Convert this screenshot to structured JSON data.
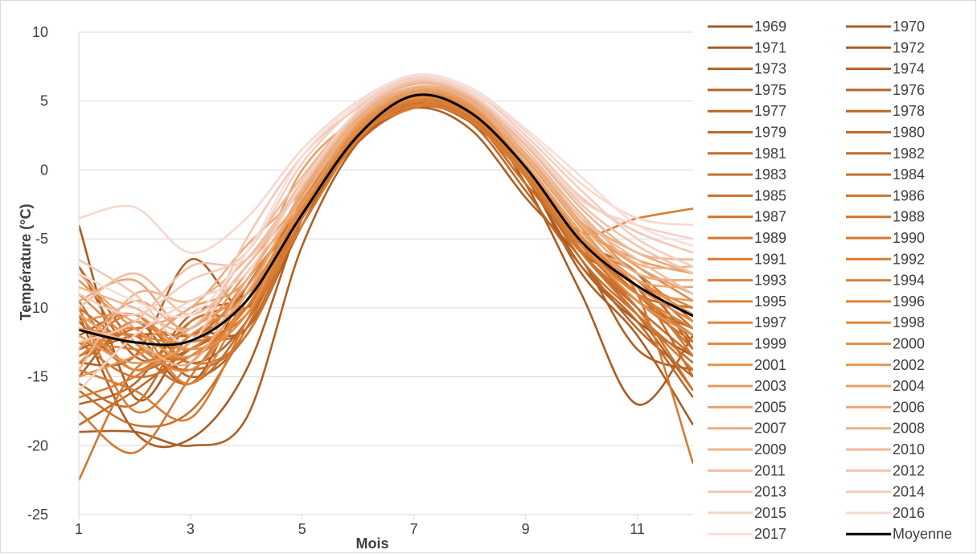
{
  "chart_data": {
    "type": "line",
    "title": "",
    "xlabel": "Mois",
    "ylabel": "Température (°C)",
    "xlim": [
      1,
      12
    ],
    "ylim": [
      -25,
      10
    ],
    "x_ticks": [
      "1",
      "3",
      "5",
      "7",
      "9",
      "11"
    ],
    "y_ticks": [
      "10",
      "5",
      "0",
      "-5",
      "-10",
      "-15",
      "-20",
      "-25"
    ],
    "grid": "horizontal",
    "legend_position": "right",
    "x": [
      1,
      2,
      3,
      4,
      5,
      6,
      7,
      8,
      9,
      10,
      11,
      12
    ],
    "average": {
      "name": "Moyenne",
      "color": "#000000",
      "values": [
        -11.6,
        -12.5,
        -12.4,
        -9.5,
        -3.2,
        2.5,
        5.4,
        4.2,
        0.2,
        -5.2,
        -8.4,
        -10.6
      ]
    },
    "series": [
      {
        "name": "1969",
        "color": "#A95A22",
        "values": [
          -4.0,
          -16.5,
          -12.0,
          -11.5,
          -4.0,
          3.0,
          5.5,
          4.0,
          -0.5,
          -7.0,
          -11.0,
          -13.5
        ]
      },
      {
        "name": "1970",
        "color": "#AB5B22",
        "values": [
          -10.5,
          -19.0,
          -19.5,
          -14.5,
          -3.5,
          3.2,
          5.0,
          4.5,
          -1.0,
          -9.0,
          -17.0,
          -12.0
        ]
      },
      {
        "name": "1971",
        "color": "#AD5C23",
        "values": [
          -13.0,
          -12.0,
          -15.5,
          -8.5,
          -3.0,
          2.5,
          5.2,
          3.5,
          -0.5,
          -7.5,
          -12.0,
          -18.5
        ]
      },
      {
        "name": "1972",
        "color": "#B05E23",
        "values": [
          -19.0,
          -19.0,
          -20.0,
          -18.0,
          -5.5,
          2.0,
          4.5,
          3.0,
          -2.0,
          -6.5,
          -13.0,
          -14.5
        ]
      },
      {
        "name": "1973",
        "color": "#B26024",
        "values": [
          -14.0,
          -13.5,
          -6.5,
          -10.0,
          -3.5,
          2.5,
          5.0,
          4.0,
          -1.0,
          -5.0,
          -9.0,
          -12.0
        ]
      },
      {
        "name": "1974",
        "color": "#B46124",
        "values": [
          -15.0,
          -11.0,
          -15.0,
          -12.0,
          -4.0,
          2.5,
          4.8,
          3.5,
          0.0,
          -6.0,
          -10.5,
          -16.0
        ]
      },
      {
        "name": "1975",
        "color": "#B66325",
        "values": [
          -12.0,
          -10.5,
          -14.0,
          -11.0,
          -3.0,
          2.8,
          5.1,
          4.0,
          0.5,
          -5.0,
          -7.5,
          -13.0
        ]
      },
      {
        "name": "1976",
        "color": "#B86426",
        "values": [
          -7.0,
          -13.5,
          -13.0,
          -10.0,
          -2.5,
          3.0,
          5.0,
          3.8,
          0.0,
          -5.5,
          -9.5,
          -11.5
        ]
      },
      {
        "name": "1977",
        "color": "#BA6526",
        "values": [
          -17.0,
          -15.5,
          -10.5,
          -9.0,
          -3.0,
          2.2,
          5.3,
          3.8,
          -0.5,
          -6.5,
          -11.5,
          -15.0
        ]
      },
      {
        "name": "1978",
        "color": "#BC6727",
        "values": [
          -13.5,
          -12.0,
          -12.0,
          -11.5,
          -3.5,
          2.0,
          4.5,
          4.0,
          0.0,
          -6.0,
          -8.0,
          -12.5
        ]
      },
      {
        "name": "1979",
        "color": "#BE6828",
        "values": [
          -18.5,
          -16.0,
          -13.0,
          -10.5,
          -4.0,
          2.5,
          4.6,
          3.5,
          -1.5,
          -7.0,
          -11.0,
          -16.5
        ]
      },
      {
        "name": "1980",
        "color": "#C06A28",
        "values": [
          -11.0,
          -14.5,
          -12.5,
          -8.5,
          -2.5,
          2.8,
          5.0,
          4.0,
          0.5,
          -5.0,
          -9.0,
          -10.0
        ]
      },
      {
        "name": "1981",
        "color": "#C26B29",
        "values": [
          -7.0,
          -12.5,
          -14.5,
          -12.0,
          -3.5,
          2.5,
          5.2,
          3.8,
          -0.5,
          -6.0,
          -10.0,
          -13.5
        ]
      },
      {
        "name": "1982",
        "color": "#C46D2A",
        "values": [
          -15.5,
          -17.0,
          -11.0,
          -10.0,
          -3.0,
          2.8,
          5.0,
          4.0,
          0.0,
          -5.5,
          -8.5,
          -15.0
        ]
      },
      {
        "name": "1983",
        "color": "#C66E2B",
        "values": [
          -10.0,
          -13.0,
          -15.5,
          -11.0,
          -2.5,
          3.0,
          5.3,
          4.2,
          -0.5,
          -6.0,
          -9.5,
          -12.0
        ]
      },
      {
        "name": "1984",
        "color": "#C8702C",
        "values": [
          -14.0,
          -11.5,
          -12.0,
          -9.5,
          -3.0,
          2.6,
          4.8,
          3.6,
          0.0,
          -6.5,
          -10.5,
          -14.0
        ]
      },
      {
        "name": "1985",
        "color": "#CA712C",
        "values": [
          -16.0,
          -18.5,
          -17.5,
          -11.5,
          -3.5,
          2.3,
          5.0,
          3.8,
          -1.0,
          -5.5,
          -8.0,
          -11.5
        ]
      },
      {
        "name": "1986",
        "color": "#CC722D",
        "values": [
          -12.5,
          -15.0,
          -13.5,
          -10.0,
          -3.2,
          2.5,
          5.1,
          4.0,
          0.2,
          -5.0,
          -9.0,
          -13.0
        ]
      },
      {
        "name": "1987",
        "color": "#CE742E",
        "values": [
          -9.5,
          -14.5,
          -11.0,
          -9.0,
          -2.8,
          2.8,
          5.2,
          4.0,
          -0.2,
          -6.0,
          -10.0,
          -16.0
        ]
      },
      {
        "name": "1988",
        "color": "#D0752F",
        "values": [
          -13.0,
          -10.5,
          -14.0,
          -12.0,
          -3.5,
          2.5,
          4.6,
          3.7,
          0.3,
          -5.5,
          -9.5,
          -12.5
        ]
      },
      {
        "name": "1989",
        "color": "#D27730",
        "values": [
          -22.5,
          -14.5,
          -13.5,
          -10.0,
          -3.0,
          2.7,
          5.0,
          4.0,
          -0.5,
          -6.0,
          -10.5,
          -14.5
        ]
      },
      {
        "name": "1990",
        "color": "#D47831",
        "values": [
          -17.5,
          -20.5,
          -15.0,
          -9.5,
          -3.2,
          2.5,
          4.9,
          3.8,
          0.0,
          -5.0,
          -8.5,
          -13.5
        ]
      },
      {
        "name": "1991",
        "color": "#D67A32",
        "values": [
          -14.5,
          -16.0,
          -18.0,
          -11.0,
          -3.5,
          2.6,
          5.1,
          4.1,
          -0.3,
          -5.8,
          -9.0,
          -21.3
        ]
      },
      {
        "name": "1992",
        "color": "#D87C34",
        "values": [
          -11.5,
          -12.0,
          -12.5,
          -10.5,
          -4.0,
          2.2,
          4.7,
          3.6,
          -0.5,
          -5.5,
          -9.0,
          -12.0
        ]
      },
      {
        "name": "1993",
        "color": "#DA7D35",
        "values": [
          -10.0,
          -17.5,
          -14.0,
          -10.0,
          -3.0,
          2.5,
          4.5,
          5.2,
          0.0,
          -4.5,
          -3.5,
          -2.8
        ]
      },
      {
        "name": "1994",
        "color": "#DB7F36",
        "values": [
          -16.5,
          -15.0,
          -12.0,
          -9.0,
          -3.2,
          2.8,
          5.0,
          4.0,
          0.5,
          -5.2,
          -7.5,
          -11.0
        ]
      },
      {
        "name": "1995",
        "color": "#DD8138",
        "values": [
          -12.5,
          -13.0,
          -13.5,
          -10.5,
          -3.0,
          2.6,
          5.2,
          4.2,
          0.2,
          -5.0,
          -8.5,
          -10.5
        ]
      },
      {
        "name": "1996",
        "color": "#DE833B",
        "values": [
          -13.5,
          -11.5,
          -15.5,
          -9.5,
          -2.5,
          3.0,
          5.4,
          4.3,
          0.0,
          -5.5,
          -9.0,
          -11.5
        ]
      },
      {
        "name": "1997",
        "color": "#E0863E",
        "values": [
          -10.5,
          -14.5,
          -12.0,
          -9.0,
          -2.8,
          2.8,
          5.5,
          4.5,
          0.5,
          -4.5,
          -8.0,
          -10.0
        ]
      },
      {
        "name": "1998",
        "color": "#E18942",
        "values": [
          -14.0,
          -11.0,
          -13.0,
          -8.0,
          -3.0,
          3.0,
          5.3,
          4.4,
          1.0,
          -4.0,
          -7.0,
          -9.5
        ]
      },
      {
        "name": "1999",
        "color": "#E28C46",
        "values": [
          -9.0,
          -12.5,
          -14.5,
          -9.5,
          -2.5,
          2.9,
          5.2,
          4.3,
          0.2,
          -5.0,
          -8.5,
          -11.0
        ]
      },
      {
        "name": "2000",
        "color": "#E3904B",
        "values": [
          -11.0,
          -10.5,
          -13.0,
          -10.5,
          -2.2,
          3.1,
          5.6,
          4.6,
          0.5,
          -4.8,
          -8.0,
          -10.5
        ]
      },
      {
        "name": "2001",
        "color": "#E49351",
        "values": [
          -15.0,
          -13.5,
          -11.5,
          -8.5,
          -2.0,
          3.2,
          5.7,
          4.5,
          0.3,
          -5.2,
          -9.5,
          -12.0
        ]
      },
      {
        "name": "2002",
        "color": "#E59757",
        "values": [
          -8.0,
          -11.5,
          -13.5,
          -9.0,
          -1.8,
          3.5,
          5.8,
          4.7,
          1.0,
          -3.5,
          -7.5,
          -8.0
        ]
      },
      {
        "name": "2003",
        "color": "#E69B5E",
        "values": [
          -12.0,
          -14.0,
          -12.5,
          -7.5,
          -2.5,
          3.3,
          5.6,
          4.8,
          0.8,
          -4.2,
          -8.5,
          -9.5
        ]
      },
      {
        "name": "2004",
        "color": "#E79F65",
        "values": [
          -10.5,
          -12.5,
          -10.0,
          -8.0,
          0.0,
          3.8,
          6.0,
          5.0,
          1.2,
          -4.0,
          -6.5,
          -7.5
        ]
      },
      {
        "name": "2005",
        "color": "#E8A36D",
        "values": [
          -13.0,
          -9.5,
          -11.5,
          -7.0,
          -2.0,
          3.5,
          5.8,
          4.9,
          1.0,
          -3.8,
          -7.0,
          -9.0
        ]
      },
      {
        "name": "2006",
        "color": "#E9A775",
        "values": [
          -9.5,
          -8.0,
          -12.0,
          -9.0,
          -1.5,
          3.8,
          6.0,
          5.1,
          0.5,
          -4.5,
          -8.0,
          -8.5
        ]
      },
      {
        "name": "2007",
        "color": "#EBAB7D",
        "values": [
          -7.5,
          -11.0,
          -10.0,
          -5.5,
          -1.5,
          3.8,
          5.9,
          5.2,
          1.2,
          -3.5,
          -6.0,
          -7.5
        ]
      },
      {
        "name": "2008",
        "color": "#ECB086",
        "values": [
          -11.5,
          -12.5,
          -14.0,
          -8.0,
          -2.0,
          3.6,
          6.0,
          5.0,
          1.0,
          -4.0,
          -7.5,
          -8.0
        ]
      },
      {
        "name": "2009",
        "color": "#EDB58F",
        "values": [
          -14.5,
          -9.0,
          -9.5,
          -6.5,
          -1.0,
          4.0,
          6.2,
          5.3,
          1.5,
          -3.2,
          -6.8,
          -7.0
        ]
      },
      {
        "name": "2010",
        "color": "#EEB998",
        "values": [
          -8.5,
          -10.0,
          -11.5,
          -6.0,
          -0.5,
          4.2,
          6.3,
          5.4,
          1.8,
          -2.8,
          -6.0,
          -6.5
        ]
      },
      {
        "name": "2011",
        "color": "#F0BEA2",
        "values": [
          -10.0,
          -7.5,
          -10.5,
          -7.0,
          -1.2,
          4.0,
          6.4,
          5.5,
          1.5,
          -3.5,
          -6.5,
          -9.0
        ]
      },
      {
        "name": "2012",
        "color": "#F1C3AB",
        "values": [
          -12.5,
          -11.0,
          -7.0,
          -6.5,
          -0.8,
          4.2,
          6.5,
          5.6,
          2.0,
          -2.5,
          -5.5,
          -7.5
        ]
      },
      {
        "name": "2013",
        "color": "#F2C8B5",
        "values": [
          -6.5,
          -9.0,
          -12.5,
          -5.0,
          1.0,
          4.5,
          6.5,
          5.5,
          2.2,
          -2.0,
          -4.5,
          -6.0
        ]
      },
      {
        "name": "2014",
        "color": "#F4CDBE",
        "values": [
          -9.0,
          -10.5,
          -8.0,
          -6.0,
          0.5,
          4.6,
          6.7,
          5.8,
          2.5,
          -1.5,
          -5.0,
          -7.0
        ]
      },
      {
        "name": "2015",
        "color": "#F5D2C7",
        "values": [
          -16.0,
          -12.0,
          -9.5,
          -7.5,
          -1.0,
          4.3,
          6.6,
          5.6,
          2.0,
          -2.2,
          -4.0,
          -5.0
        ]
      },
      {
        "name": "2016",
        "color": "#F6D8D0",
        "values": [
          -3.5,
          -2.7,
          -6.0,
          -3.5,
          1.5,
          5.0,
          6.8,
          5.8,
          2.8,
          -1.0,
          -3.5,
          -4.0
        ]
      },
      {
        "name": "2017",
        "color": "#F8DDD8",
        "values": [
          -7.5,
          -9.5,
          -10.5,
          -6.0,
          1.0,
          4.8,
          6.9,
          6.0,
          3.0,
          -0.5,
          -4.0,
          -5.5
        ]
      }
    ]
  }
}
